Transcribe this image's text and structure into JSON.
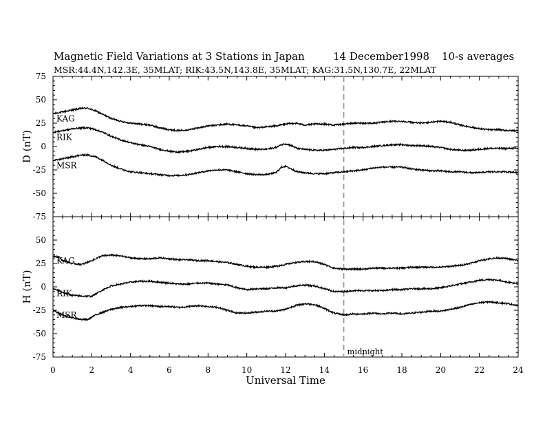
{
  "header": {
    "title": "Magnetic Field Variations at 3 Stations in Japan",
    "date": "14 December1998",
    "averaging": "10-s averages",
    "stations_line": "MSR:44.4N,142.3E, 35MLAT;  RIK:43.5N,143.8E, 35MLAT;  KAG:31.5N,130.7E, 22MLAT"
  },
  "chart_data": {
    "type": "line",
    "xlabel": "Universal Time",
    "xlim": [
      0,
      24
    ],
    "x_ticks": [
      "0",
      "2",
      "4",
      "6",
      "8",
      "10",
      "12",
      "14",
      "16",
      "18",
      "20",
      "22",
      "24"
    ],
    "midnight_marker": {
      "x": 15,
      "label": "midnight"
    },
    "panels": [
      {
        "ylabel": "D (nT)",
        "ylim": [
          -75,
          75
        ],
        "y_ticks": [
          "75",
          "50",
          "25",
          "0",
          "-25",
          "-50",
          "-75"
        ],
        "series": [
          {
            "name": "KAG",
            "x": [
              0,
              0.5,
              1,
              1.5,
              1.8,
              2.2,
              2.6,
              3,
              3.5,
              4,
              4.5,
              5,
              5.5,
              6,
              6.5,
              7,
              7.5,
              8,
              8.5,
              9,
              9.5,
              10,
              10.5,
              11,
              11.5,
              12,
              12.5,
              13,
              13.5,
              14,
              14.5,
              15,
              15.5,
              16,
              16.5,
              17,
              17.5,
              18,
              18.5,
              19,
              19.5,
              20,
              20.5,
              21,
              21.5,
              22,
              22.5,
              23,
              23.5,
              24
            ],
            "y": [
              35,
              37,
              39,
              41,
              41,
              38,
              34,
              30,
              27,
              25,
              24,
              23,
              20,
              18,
              17,
              18,
              20,
              22,
              23,
              24,
              23,
              22,
              20,
              21,
              22,
              24,
              25,
              23,
              24,
              24,
              23,
              24,
              25,
              25,
              25,
              26,
              27,
              27,
              26,
              25,
              26,
              27,
              26,
              23,
              21,
              19,
              18,
              18,
              17,
              17
            ]
          },
          {
            "name": "RIK",
            "x": [
              0,
              0.5,
              1,
              1.5,
              1.8,
              2.2,
              2.6,
              3,
              3.5,
              4,
              4.5,
              5,
              5.5,
              6,
              6.5,
              7,
              7.5,
              8,
              8.5,
              9,
              9.5,
              10,
              10.5,
              11,
              11.5,
              11.8,
              12,
              12.3,
              12.6,
              13,
              13.5,
              14,
              14.5,
              15,
              15.5,
              16,
              16.5,
              17,
              17.5,
              18,
              18.5,
              19,
              19.5,
              20,
              20.5,
              21,
              21.5,
              22,
              22.5,
              23,
              23.5,
              24
            ],
            "y": [
              15,
              17,
              19,
              20,
              20,
              18,
              15,
              11,
              7,
              4,
              2,
              0,
              -3,
              -5,
              -6,
              -5,
              -3,
              -1,
              0,
              0,
              -1,
              -2,
              -3,
              -3,
              -1,
              2,
              3,
              1,
              -2,
              -3,
              -4,
              -4,
              -3,
              -2,
              -1,
              -1,
              0,
              1,
              2,
              2,
              1,
              1,
              0,
              -1,
              -3,
              -4,
              -4,
              -3,
              -2,
              -2,
              -2,
              -2
            ]
          },
          {
            "name": "MSR",
            "x": [
              0,
              0.5,
              1,
              1.5,
              1.8,
              2.2,
              2.6,
              3,
              3.5,
              4,
              4.5,
              5,
              5.5,
              6,
              6.5,
              7,
              7.5,
              8,
              8.5,
              9,
              9.5,
              10,
              10.5,
              11,
              11.5,
              11.8,
              12,
              12.3,
              12.6,
              13,
              13.5,
              14,
              14.5,
              15,
              15.5,
              16,
              16.5,
              17,
              17.5,
              18,
              18.5,
              19,
              19.5,
              20,
              20.5,
              21,
              21.5,
              22,
              22.5,
              23,
              23.5,
              24
            ],
            "y": [
              -15,
              -13,
              -11,
              -9,
              -9,
              -11,
              -15,
              -20,
              -24,
              -27,
              -28,
              -29,
              -30,
              -31,
              -31,
              -30,
              -28,
              -26,
              -25,
              -25,
              -27,
              -29,
              -30,
              -30,
              -28,
              -22,
              -21,
              -24,
              -27,
              -28,
              -29,
              -29,
              -28,
              -27,
              -26,
              -25,
              -23,
              -22,
              -22,
              -22,
              -24,
              -25,
              -26,
              -26,
              -27,
              -27,
              -28,
              -28,
              -27,
              -27,
              -27,
              -28
            ]
          }
        ]
      },
      {
        "ylabel": "H (nT)",
        "ylim": [
          -75,
          75
        ],
        "y_ticks": [
          "75",
          "50",
          "25",
          "0",
          "-25",
          "-50",
          "-75"
        ],
        "series": [
          {
            "name": "KAG",
            "x": [
              0,
              0.3,
              0.5,
              1,
              1.5,
              2,
              2.5,
              3,
              3.5,
              4,
              4.5,
              5,
              5.5,
              6,
              6.5,
              7,
              7.5,
              8,
              8.5,
              9,
              9.5,
              10,
              10.5,
              11,
              11.5,
              12,
              12.5,
              13,
              13.5,
              14,
              14.5,
              15,
              15.5,
              16,
              16.5,
              17,
              17.5,
              18,
              18.5,
              19,
              19.5,
              20,
              20.5,
              21,
              21.5,
              22,
              22.5,
              23,
              23.5,
              24
            ],
            "y": [
              33,
              32,
              28,
              25,
              24,
              28,
              33,
              34,
              33,
              31,
              30,
              30,
              31,
              30,
              29,
              29,
              28,
              28,
              27,
              26,
              24,
              22,
              21,
              21,
              22,
              24,
              26,
              27,
              27,
              24,
              20,
              19,
              19,
              19,
              20,
              20,
              20,
              20,
              21,
              21,
              21,
              21,
              22,
              23,
              25,
              28,
              30,
              31,
              30,
              28
            ]
          },
          {
            "name": "RIK",
            "x": [
              0,
              0.3,
              0.5,
              1,
              1.5,
              2,
              2.5,
              3,
              3.5,
              4,
              4.5,
              5,
              5.5,
              6,
              6.5,
              7,
              7.5,
              8,
              8.5,
              9,
              9.5,
              10,
              10.5,
              11,
              11.5,
              12,
              12.5,
              13,
              13.5,
              14,
              14.5,
              15,
              15.5,
              16,
              16.5,
              17,
              17.5,
              18,
              18.5,
              19,
              19.5,
              20,
              20.5,
              21,
              21.5,
              22,
              22.5,
              23,
              23.5,
              24
            ],
            "y": [
              -2,
              -4,
              -6,
              -9,
              -10,
              -10,
              -4,
              1,
              3,
              5,
              6,
              6,
              5,
              4,
              3,
              3,
              4,
              4,
              3,
              2,
              -1,
              -3,
              -2,
              -2,
              -1,
              -1,
              1,
              2,
              1,
              -2,
              -5,
              -5,
              -4,
              -4,
              -4,
              -4,
              -3,
              -3,
              -2,
              -2,
              -2,
              -1,
              1,
              3,
              5,
              7,
              8,
              7,
              5,
              3
            ]
          },
          {
            "name": "MSR",
            "x": [
              0,
              0.3,
              0.5,
              1,
              1.5,
              1.8,
              2.2,
              2.6,
              3,
              3.5,
              4,
              4.5,
              5,
              5.5,
              6,
              6.5,
              7,
              7.5,
              8,
              8.5,
              9,
              9.5,
              10,
              10.5,
              11,
              11.5,
              12,
              12.5,
              13,
              13.5,
              14,
              14.5,
              15,
              15.5,
              16,
              16.5,
              17,
              17.5,
              18,
              18.5,
              19,
              19.5,
              20,
              20.5,
              21,
              21.5,
              22,
              22.5,
              23,
              23.5,
              24
            ],
            "y": [
              -25,
              -28,
              -30,
              -33,
              -35,
              -35,
              -30,
              -27,
              -24,
              -22,
              -21,
              -20,
              -20,
              -21,
              -21,
              -22,
              -21,
              -20,
              -21,
              -22,
              -25,
              -28,
              -28,
              -27,
              -26,
              -26,
              -24,
              -20,
              -18,
              -19,
              -23,
              -28,
              -30,
              -29,
              -29,
              -28,
              -29,
              -28,
              -29,
              -28,
              -27,
              -26,
              -26,
              -24,
              -22,
              -19,
              -17,
              -16,
              -17,
              -18,
              -20
            ]
          }
        ]
      }
    ]
  }
}
